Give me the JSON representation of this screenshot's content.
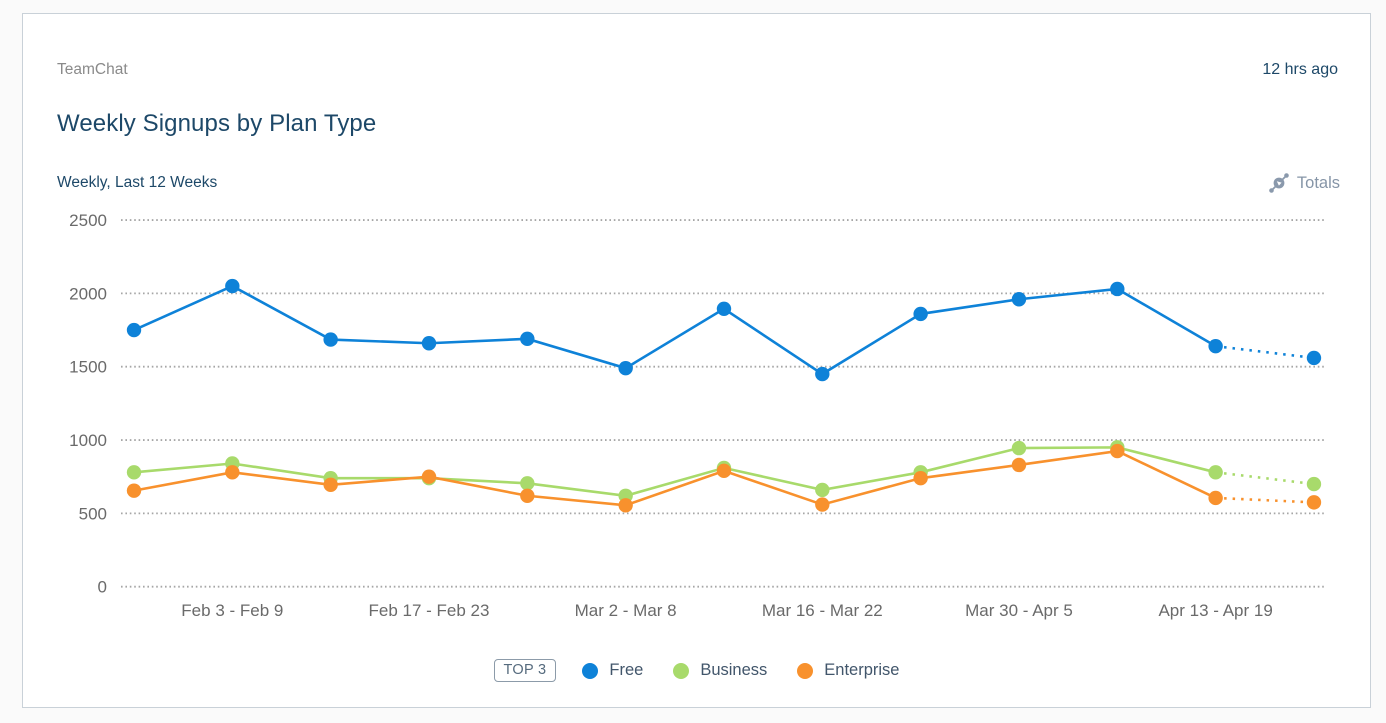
{
  "card": {
    "app_name": "TeamChat",
    "timestamp": "12 hrs ago",
    "title": "Weekly Signups by Plan Type",
    "subtitle": "Weekly, Last 12 Weeks",
    "totals_label": "Totals"
  },
  "colors": {
    "free": "#0e82d8",
    "business": "#a8da6b",
    "enterprise": "#f8912d",
    "title_text": "#1d4868",
    "muted_text": "#8a8a8a",
    "axis_text": "#6a6a6a",
    "legend_text": "#42566b",
    "grid": "#a6a6a6",
    "icon": "#8a99ac"
  },
  "chart_data": {
    "type": "line",
    "title": "Weekly Signups by Plan Type",
    "x_axis": {
      "tick_labels": [
        "Feb 3 - Feb 9",
        "Feb 17 - Feb 23",
        "Mar 2 - Mar 8",
        "Mar 16 - Mar 22",
        "Mar 30 - Apr 5",
        "Apr 13 - Apr 19"
      ],
      "tick_point_indices": [
        1,
        3,
        5,
        7,
        9,
        11
      ],
      "num_points": 13
    },
    "y_axis": {
      "ticks": [
        0,
        500,
        1000,
        1500,
        2000,
        2500
      ],
      "range": [
        0,
        2500
      ]
    },
    "grid": "horizontal-dotted",
    "last_segment_style": "dotted",
    "series": [
      {
        "name": "Free",
        "color": "#0e82d8",
        "values": [
          1750,
          2050,
          1685,
          1660,
          1690,
          1490,
          1895,
          1450,
          1860,
          1960,
          2030,
          1640,
          1560
        ]
      },
      {
        "name": "Business",
        "color": "#a8da6b",
        "values": [
          780,
          840,
          740,
          740,
          705,
          620,
          810,
          660,
          780,
          945,
          950,
          780,
          700
        ]
      },
      {
        "name": "Enterprise",
        "color": "#f8912d",
        "values": [
          655,
          780,
          695,
          750,
          620,
          555,
          790,
          560,
          740,
          830,
          925,
          605,
          575
        ]
      }
    ],
    "legend": {
      "badge": "TOP 3",
      "entries": [
        "Free",
        "Business",
        "Enterprise"
      ],
      "position": "bottom-center"
    }
  }
}
